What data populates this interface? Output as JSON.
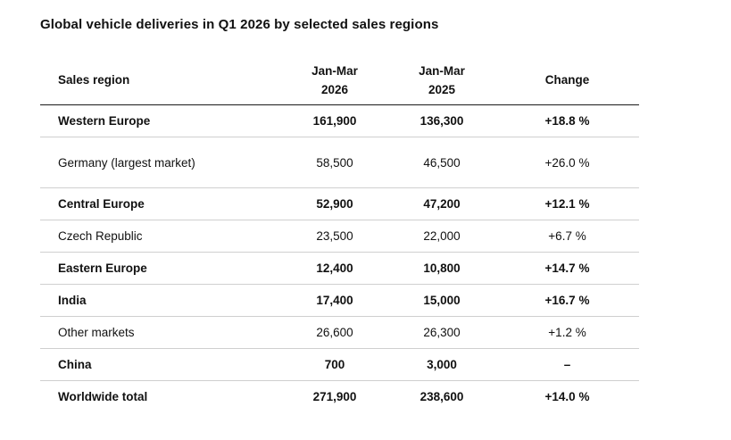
{
  "title": "Global vehicle deliveries in Q1 2026 by selected sales regions",
  "table": {
    "headers": {
      "region": "Sales region",
      "col2026_line1": "Jan-Mar",
      "col2026_line2": "2026",
      "col2025_line1": "Jan-Mar",
      "col2025_line2": "2025",
      "change": "Change"
    },
    "rows": [
      {
        "region": "Western Europe",
        "y2026": "161,900",
        "y2025": "136,300",
        "change": "+18.8 %",
        "bold": true
      },
      {
        "region": "Germany (largest market)",
        "y2026": "58,500",
        "y2025": "46,500",
        "change": "+26.0 %",
        "bold": false
      },
      {
        "region": "Central Europe",
        "y2026": "52,900",
        "y2025": "47,200",
        "change": "+12.1 %",
        "bold": true
      },
      {
        "region": "Czech Republic",
        "y2026": "23,500",
        "y2025": "22,000",
        "change": "+6.7 %",
        "bold": false
      },
      {
        "region": "Eastern Europe",
        "y2026": "12,400",
        "y2025": "10,800",
        "change": "+14.7 %",
        "bold": true
      },
      {
        "region": "India",
        "y2026": "17,400",
        "y2025": "15,000",
        "change": "+16.7 %",
        "bold": true
      },
      {
        "region": "Other markets",
        "y2026": "26,600",
        "y2025": "26,300",
        "change": "+1.2 %",
        "bold": false
      },
      {
        "region": "China",
        "y2026": "700",
        "y2025": "3,000",
        "change": "–",
        "bold": true
      }
    ],
    "total": {
      "region": "Worldwide total",
      "y2026": "271,900",
      "y2025": "238,600",
      "change": "+14.0 %"
    }
  }
}
